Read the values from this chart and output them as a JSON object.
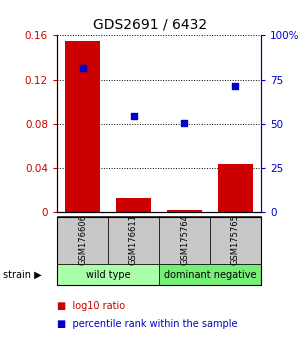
{
  "title": "GDS2691 / 6432",
  "samples": [
    "GSM176606",
    "GSM176611",
    "GSM175764",
    "GSM175765"
  ],
  "log10_ratio": [
    0.155,
    0.013,
    0.002,
    0.044
  ],
  "percentile_rank": [
    0.815,
    0.545,
    0.505,
    0.715
  ],
  "ylim_left": [
    0,
    0.16
  ],
  "ylim_right": [
    0,
    1.0
  ],
  "yticks_left": [
    0,
    0.04,
    0.08,
    0.12,
    0.16
  ],
  "yticks_right": [
    0,
    0.25,
    0.5,
    0.75,
    1.0
  ],
  "ytick_labels_left": [
    "0",
    "0.04",
    "0.08",
    "0.12",
    "0.16"
  ],
  "ytick_labels_right": [
    "0",
    "25",
    "50",
    "75",
    "100%"
  ],
  "bar_color": "#cc0000",
  "scatter_color": "#0000cc",
  "groups": [
    {
      "label": "wild type",
      "samples": [
        0,
        1
      ],
      "color": "#aaffaa"
    },
    {
      "label": "dominant negative",
      "samples": [
        2,
        3
      ],
      "color": "#77ee77"
    }
  ],
  "strain_label": "strain",
  "legend_bar_label": "log10 ratio",
  "legend_scatter_label": "percentile rank within the sample",
  "bg_label_area": "#c8c8c8"
}
